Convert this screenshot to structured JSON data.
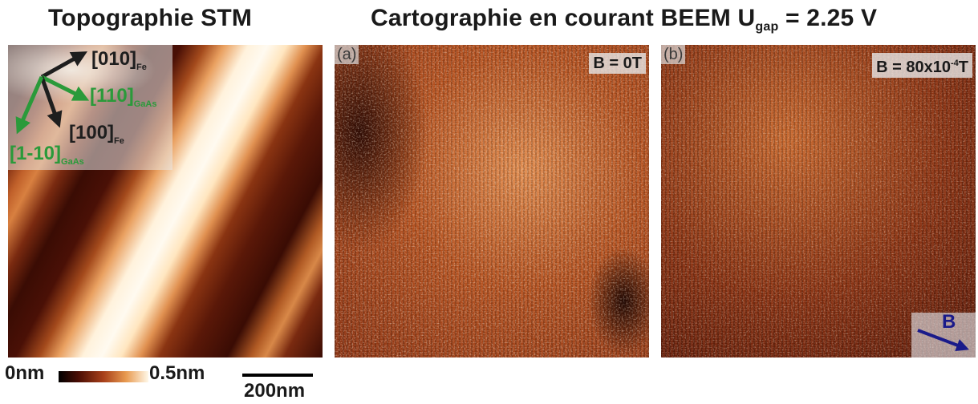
{
  "titles": {
    "left": "Topographie STM",
    "right_main": "Cartographie en courant BEEM U",
    "right_sub": "gap",
    "right_value": " = 2.25 V"
  },
  "stm_panel": {
    "directions": {
      "d010": {
        "main": "[010]",
        "sub": "Fe"
      },
      "d110": {
        "main": "[110]",
        "sub": "GaAs"
      },
      "d100": {
        "main": "[100]",
        "sub": "Fe"
      },
      "d1m10": {
        "main": "[1-10]",
        "sub": "GaAs"
      }
    }
  },
  "panel_a": {
    "corner": "(a)",
    "field": "B = 0T"
  },
  "panel_b": {
    "corner": "(b)",
    "field_prefix": "B = 80x10",
    "field_exp": "-4",
    "field_unit": "T",
    "arrow_label": "B"
  },
  "colorbar": {
    "min": "0nm",
    "max": "0.5nm"
  },
  "scalebar": {
    "label": "200nm"
  },
  "colors": {
    "dark_arrow": "#1e1e1e",
    "green_arrow": "#2a9a3a",
    "field_arrow": "#1a1a8a"
  }
}
